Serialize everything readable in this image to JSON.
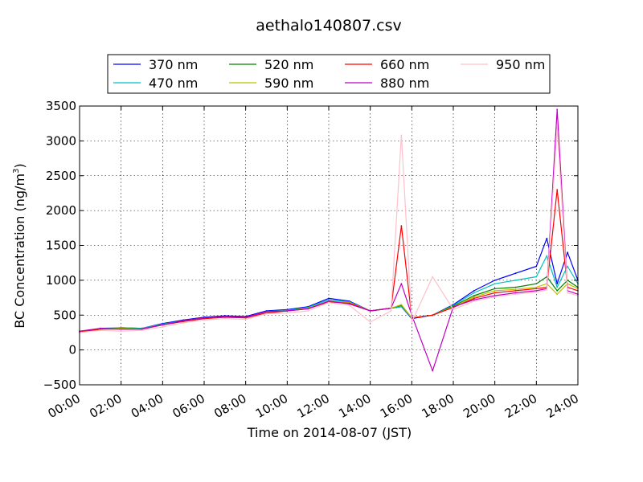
{
  "chart_data": {
    "type": "line",
    "title": "aethalo140807.csv",
    "xlabel": "Time on 2014-08-07 (JST)",
    "ylabel": "BC Concentration (ng/m",
    "ylabel_sup": "3",
    "ylabel_end": ")",
    "xlim": [
      "00:00",
      "24:00"
    ],
    "ylim": [
      -500,
      3500
    ],
    "yticks": [
      -500,
      0,
      500,
      1000,
      1500,
      2000,
      2500,
      3000,
      3500
    ],
    "yticklabels": [
      "−500",
      "0",
      "500",
      "1000",
      "1500",
      "2000",
      "2500",
      "3000",
      "3500"
    ],
    "xticklabels": [
      "00:00",
      "02:00",
      "04:00",
      "06:00",
      "08:00",
      "10:00",
      "12:00",
      "14:00",
      "16:00",
      "18:00",
      "20:00",
      "22:00",
      "24:00"
    ],
    "grid": true,
    "legend_position": "top",
    "series": [
      {
        "name": "370 nm",
        "color": "#0000ff",
        "x": [
          "00:00",
          "01:00",
          "02:00",
          "03:00",
          "04:00",
          "05:00",
          "06:00",
          "07:00",
          "08:00",
          "09:00",
          "10:00",
          "11:00",
          "12:00",
          "13:00",
          "14:00",
          "15:00",
          "15:30",
          "16:00",
          "17:00",
          "18:00",
          "19:00",
          "20:00",
          "21:00",
          "22:00",
          "22:30",
          "23:00",
          "23:30",
          "24:00"
        ],
        "values": [
          250,
          300,
          320,
          310,
          380,
          430,
          470,
          490,
          480,
          560,
          580,
          620,
          740,
          700,
          560,
          600,
          620,
          450,
          500,
          650,
          850,
          1000,
          1100,
          1200,
          1600,
          950,
          1400,
          1000
        ]
      },
      {
        "name": "470 nm",
        "color": "#00bfbf",
        "x": [
          "00:00",
          "01:00",
          "02:00",
          "03:00",
          "04:00",
          "05:00",
          "06:00",
          "07:00",
          "08:00",
          "09:00",
          "10:00",
          "11:00",
          "12:00",
          "13:00",
          "14:00",
          "15:00",
          "15:30",
          "16:00",
          "17:00",
          "18:00",
          "19:00",
          "20:00",
          "21:00",
          "22:00",
          "22:30",
          "23:00",
          "23:30",
          "24:00"
        ],
        "values": [
          250,
          310,
          320,
          310,
          370,
          420,
          460,
          480,
          470,
          550,
          570,
          610,
          720,
          690,
          560,
          600,
          620,
          460,
          500,
          640,
          820,
          950,
          1000,
          1050,
          1350,
          900,
          1200,
          950
        ]
      },
      {
        "name": "520 nm",
        "color": "#008000",
        "x": [
          "00:00",
          "01:00",
          "02:00",
          "03:00",
          "04:00",
          "05:00",
          "06:00",
          "07:00",
          "08:00",
          "09:00",
          "10:00",
          "11:00",
          "12:00",
          "13:00",
          "14:00",
          "15:00",
          "15:30",
          "16:00",
          "17:00",
          "18:00",
          "19:00",
          "20:00",
          "21:00",
          "22:00",
          "22:30",
          "23:00",
          "23:30",
          "24:00"
        ],
        "values": [
          260,
          300,
          310,
          300,
          360,
          420,
          460,
          470,
          470,
          540,
          560,
          600,
          700,
          680,
          560,
          600,
          640,
          460,
          500,
          630,
          780,
          880,
          900,
          950,
          1050,
          850,
          1000,
          900
        ]
      },
      {
        "name": "590 nm",
        "color": "#bfbf00",
        "x": [
          "00:00",
          "01:00",
          "02:00",
          "03:00",
          "04:00",
          "05:00",
          "06:00",
          "07:00",
          "08:00",
          "09:00",
          "10:00",
          "11:00",
          "12:00",
          "13:00",
          "14:00",
          "15:00",
          "15:30",
          "16:00",
          "17:00",
          "18:00",
          "19:00",
          "20:00",
          "21:00",
          "22:00",
          "22:30",
          "23:00",
          "23:30",
          "24:00"
        ],
        "values": [
          260,
          300,
          310,
          300,
          360,
          410,
          450,
          470,
          460,
          540,
          560,
          600,
          700,
          680,
          560,
          600,
          650,
          460,
          500,
          620,
          760,
          850,
          870,
          900,
          950,
          800,
          950,
          880
        ]
      },
      {
        "name": "660 nm",
        "color": "#ff0000",
        "x": [
          "00:00",
          "01:00",
          "02:00",
          "03:00",
          "04:00",
          "05:00",
          "06:00",
          "07:00",
          "08:00",
          "09:00",
          "10:00",
          "11:00",
          "12:00",
          "13:00",
          "14:00",
          "15:00",
          "15:30",
          "16:00",
          "17:00",
          "18:00",
          "19:00",
          "20:00",
          "21:00",
          "22:00",
          "22:30",
          "23:00",
          "23:30",
          "24:00"
        ],
        "values": [
          260,
          300,
          300,
          300,
          360,
          410,
          450,
          470,
          460,
          530,
          560,
          590,
          690,
          670,
          560,
          600,
          1780,
          460,
          500,
          610,
          740,
          820,
          850,
          880,
          900,
          2300,
          900,
          850
        ]
      },
      {
        "name": "880 nm",
        "color": "#bf00bf",
        "x": [
          "00:00",
          "01:00",
          "02:00",
          "03:00",
          "04:00",
          "05:00",
          "06:00",
          "07:00",
          "08:00",
          "09:00",
          "10:00",
          "11:00",
          "12:00",
          "13:00",
          "14:00",
          "15:00",
          "15:30",
          "16:00",
          "17:00",
          "18:00",
          "19:00",
          "20:00",
          "21:00",
          "22:00",
          "22:30",
          "23:00",
          "23:30",
          "24:00"
        ],
        "values": [
          270,
          310,
          300,
          300,
          360,
          420,
          460,
          480,
          470,
          550,
          560,
          590,
          700,
          660,
          560,
          600,
          950,
          500,
          -300,
          620,
          720,
          780,
          820,
          850,
          880,
          3450,
          850,
          800
        ]
      },
      {
        "name": "950 nm",
        "color": "#ffc0cb",
        "x": [
          "00:00",
          "01:00",
          "02:00",
          "03:00",
          "04:00",
          "05:00",
          "06:00",
          "07:00",
          "08:00",
          "09:00",
          "10:00",
          "11:00",
          "12:00",
          "13:00",
          "14:00",
          "15:00",
          "15:30",
          "16:00",
          "17:00",
          "18:00",
          "19:00",
          "20:00",
          "21:00",
          "22:00",
          "22:30",
          "23:00",
          "23:30",
          "24:00"
        ],
        "values": [
          250,
          280,
          270,
          280,
          330,
          390,
          430,
          450,
          440,
          520,
          530,
          560,
          680,
          640,
          400,
          560,
          3080,
          400,
          1050,
          580,
          700,
          760,
          800,
          830,
          860,
          3200,
          820,
          780
        ]
      }
    ]
  }
}
